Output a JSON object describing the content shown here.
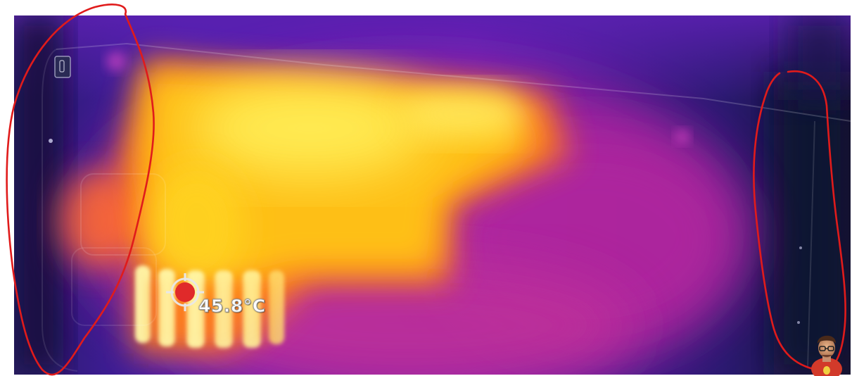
{
  "thermal_image": {
    "palette": "ironbow",
    "spot_measurement": {
      "value": "45.8",
      "unit": "°C"
    },
    "annotations": [
      {
        "kind": "freehand-circle",
        "color": "#e01b1b",
        "target": "left-grip"
      },
      {
        "kind": "freehand-circle",
        "color": "#e01b1b",
        "target": "right-grip"
      }
    ],
    "watermark": "avatar-logo"
  },
  "colors": {
    "cold": "#1a1440",
    "cool": "#5a1fb8",
    "warm": "#d02a9a",
    "hot": "#ff9a10",
    "hottest": "#fff070",
    "marker": "#e02a2a",
    "annotation": "#e01b1b"
  }
}
